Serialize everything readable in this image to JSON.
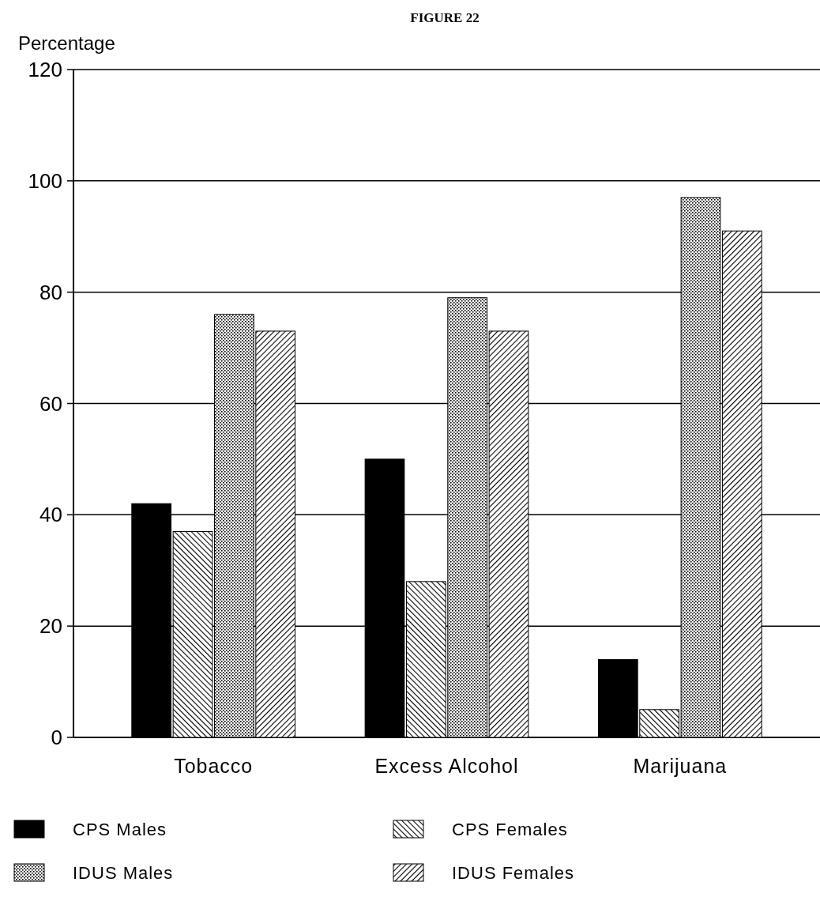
{
  "chart_data": {
    "type": "bar",
    "title": "FIGURE 22",
    "ylabel": "Percentage",
    "categories": [
      "Tobacco",
      "Excess Alcohol",
      "Marijuana"
    ],
    "series": [
      {
        "name": "CPS Males",
        "color": "#000000",
        "values": [
          42,
          50,
          14
        ]
      },
      {
        "name": "CPS Females",
        "color": "#000000",
        "values": [
          37,
          28,
          5
        ]
      },
      {
        "name": "IDUS Males",
        "color": "#000000",
        "values": [
          76,
          79,
          97
        ]
      },
      {
        "name": "IDUS Females",
        "color": "#000000",
        "values": [
          73,
          73,
          91
        ]
      }
    ],
    "ylim": [
      0,
      120
    ],
    "yticks": [
      0,
      20,
      40,
      60,
      80,
      100,
      120
    ],
    "grid": "y",
    "legend": "bottom"
  }
}
